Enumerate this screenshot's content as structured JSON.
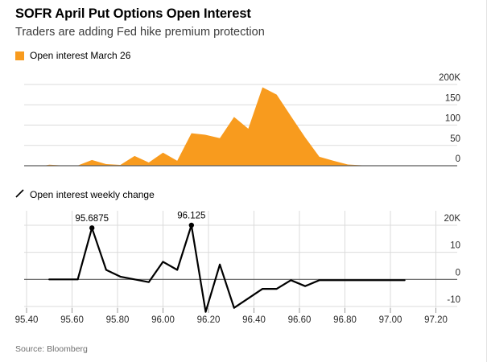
{
  "header": {
    "title": "SOFR April Put Options Open Interest",
    "subtitle": "Traders are adding Fed hike premium protection"
  },
  "legends": {
    "top_label": "Open interest March 26",
    "bottom_label": "Open interest weekly change"
  },
  "source": "Source: Bloomberg",
  "colors": {
    "accent_orange": "#F89B1E",
    "series_line": "#000000",
    "grid": "#dbdbdb",
    "zero_axis": "#5a5a5a",
    "tick_mark": "#999999",
    "tick_text": "#2a2a2a"
  },
  "chart_data": [
    {
      "type": "area",
      "name": "open-interest-march-26",
      "title": "Open interest March 26",
      "unit": "thousands of contracts",
      "x": [
        95.475,
        95.5,
        95.5625,
        95.625,
        95.6875,
        95.75,
        95.8125,
        95.875,
        95.9375,
        96.0,
        96.0625,
        96.125,
        96.1875,
        96.25,
        96.3125,
        96.375,
        96.4375,
        96.5,
        96.5625,
        96.625,
        96.6875,
        96.75,
        96.8125,
        96.875,
        96.9375
      ],
      "values": [
        0,
        2.5,
        0.5,
        0.5,
        14,
        4,
        2,
        24,
        8,
        32,
        12,
        80,
        76,
        68,
        120,
        91,
        193,
        175,
        122,
        70,
        22,
        12,
        3,
        1,
        0
      ],
      "yticks": [
        200,
        150,
        100,
        50,
        0
      ],
      "ytick_labels": [
        "200K",
        "150",
        "100",
        "50",
        "0"
      ],
      "ylim": [
        0,
        200
      ],
      "xlim": [
        95.39,
        97.3
      ],
      "grid": "horizontal-only",
      "legend_position": "top-left"
    },
    {
      "type": "line",
      "name": "open-interest-weekly-change",
      "title": "Open interest weekly change",
      "unit": "thousands of contracts",
      "x": [
        95.5,
        95.625,
        95.6875,
        95.75,
        95.8125,
        95.875,
        95.9375,
        96.0,
        96.0625,
        96.125,
        96.1875,
        96.25,
        96.3125,
        96.375,
        96.4375,
        96.5,
        96.5625,
        96.625,
        96.6875,
        97.0625
      ],
      "values": [
        0,
        0,
        19,
        3.5,
        1,
        0,
        -1,
        6.5,
        3.5,
        20,
        -12,
        5.5,
        -10.5,
        -7,
        -3.5,
        -3.5,
        -0.3,
        -2.5,
        -0.3,
        -0.3
      ],
      "yticks": [
        20,
        10,
        0,
        -10
      ],
      "ytick_labels": [
        "20K",
        "10",
        "0",
        "-10"
      ],
      "ylim": [
        -13,
        25
      ],
      "xticks": [
        95.4,
        95.6,
        95.8,
        96.0,
        96.2,
        96.4,
        96.6,
        96.8,
        97.0,
        97.2
      ],
      "xtick_labels": [
        "95.40",
        "95.60",
        "95.80",
        "96.00",
        "96.20",
        "96.40",
        "96.60",
        "96.80",
        "97.00",
        "97.20"
      ],
      "xlim": [
        95.39,
        97.3
      ],
      "grid": "both",
      "annotations": [
        {
          "x": 95.6875,
          "value": 19,
          "label": "95.6875"
        },
        {
          "x": 96.125,
          "value": 20,
          "label": "96.125"
        }
      ]
    }
  ]
}
